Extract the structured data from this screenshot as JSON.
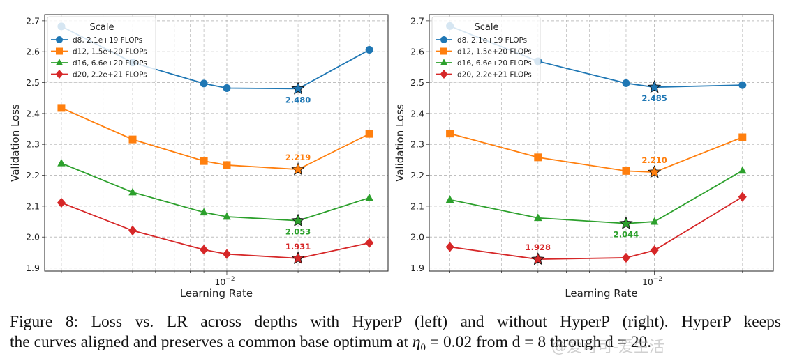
{
  "chart_data": [
    {
      "type": "line",
      "panel": "left",
      "title": "",
      "xlabel": "Learning Rate",
      "ylabel": "Validation Loss",
      "xscale": "log",
      "xlim": [
        0.0017,
        0.048
      ],
      "ylim": [
        1.89,
        2.72
      ],
      "yticks": [
        1.9,
        2.0,
        2.1,
        2.2,
        2.3,
        2.4,
        2.5,
        2.6,
        2.7
      ],
      "ytick_labels": [
        "1.9",
        "2.0",
        "2.1",
        "2.2",
        "2.3",
        "2.4",
        "2.5",
        "2.6",
        "2.7"
      ],
      "xticks_major": [
        0.01
      ],
      "xtick_labels": [
        "10^-2"
      ],
      "grid": true,
      "legend": {
        "title": "Scale",
        "placement": "top-left"
      },
      "x": [
        0.002,
        0.004,
        0.008,
        0.01,
        0.02,
        0.04
      ],
      "series": [
        {
          "name": "d8, 2.1e+19 FLOPs",
          "color": "#1f77b4",
          "marker": "circle",
          "values": [
            2.682,
            2.565,
            2.497,
            2.482,
            2.48,
            2.606
          ],
          "best": {
            "x": 0.02,
            "y": 2.48,
            "label": "2.480",
            "label_pos": "below"
          }
        },
        {
          "name": "d12, 1.5e+20 FLOPs",
          "color": "#ff7f0e",
          "marker": "square",
          "values": [
            2.418,
            2.316,
            2.246,
            2.233,
            2.219,
            2.334
          ],
          "best": {
            "x": 0.02,
            "y": 2.219,
            "label": "2.219",
            "label_pos": "above"
          }
        },
        {
          "name": "d16, 6.6e+20 FLOPs",
          "color": "#2ca02c",
          "marker": "triangle",
          "values": [
            2.239,
            2.145,
            2.08,
            2.066,
            2.053,
            2.127
          ],
          "best": {
            "x": 0.02,
            "y": 2.053,
            "label": "2.053",
            "label_pos": "below"
          }
        },
        {
          "name": "d20, 2.2e+21 FLOPs",
          "color": "#d62728",
          "marker": "diamond",
          "values": [
            2.111,
            2.021,
            1.959,
            1.945,
            1.931,
            1.981
          ],
          "best": {
            "x": 0.02,
            "y": 1.931,
            "label": "1.931",
            "label_pos": "above"
          }
        }
      ]
    },
    {
      "type": "line",
      "panel": "right",
      "title": "",
      "xlabel": "Learning Rate",
      "ylabel": "Validation Loss",
      "xscale": "log",
      "xlim": [
        0.0017,
        0.0255
      ],
      "ylim": [
        1.89,
        2.72
      ],
      "yticks": [
        1.9,
        2.0,
        2.1,
        2.2,
        2.3,
        2.4,
        2.5,
        2.6,
        2.7
      ],
      "ytick_labels": [
        "1.9",
        "2.0",
        "2.1",
        "2.2",
        "2.3",
        "2.4",
        "2.5",
        "2.6",
        "2.7"
      ],
      "xticks_major": [
        0.01
      ],
      "xtick_labels": [
        "10^-2"
      ],
      "grid": true,
      "legend": {
        "title": "Scale",
        "placement": "top-left"
      },
      "x": [
        0.002,
        0.004,
        0.008,
        0.01,
        0.02
      ],
      "series": [
        {
          "name": "d8, 2.1e+19 FLOPs",
          "color": "#1f77b4",
          "marker": "circle",
          "values": [
            2.683,
            2.569,
            2.498,
            2.485,
            2.492
          ],
          "best": {
            "x": 0.01,
            "y": 2.485,
            "label": "2.485",
            "label_pos": "below"
          }
        },
        {
          "name": "d12, 1.5e+20 FLOPs",
          "color": "#ff7f0e",
          "marker": "square",
          "values": [
            2.335,
            2.258,
            2.214,
            2.21,
            2.323
          ],
          "best": {
            "x": 0.01,
            "y": 2.21,
            "label": "2.210",
            "label_pos": "above"
          }
        },
        {
          "name": "d16, 6.6e+20 FLOPs",
          "color": "#2ca02c",
          "marker": "triangle",
          "values": [
            2.121,
            2.062,
            2.044,
            2.05,
            2.215
          ],
          "best": {
            "x": 0.008,
            "y": 2.044,
            "label": "2.044",
            "label_pos": "below"
          }
        },
        {
          "name": "d20, 2.2e+21 FLOPs",
          "color": "#d62728",
          "marker": "diamond",
          "values": [
            1.968,
            1.928,
            1.933,
            1.957,
            2.13
          ],
          "best": {
            "x": 0.004,
            "y": 1.928,
            "label": "1.928",
            "label_pos": "above"
          }
        }
      ]
    }
  ],
  "caption": {
    "line1": "Figure 8: Loss vs. LR across depths with HyperP (left) and without HyperP (right). HyperP keeps",
    "line2_pre": "the curves aligned and preserves a common base optimum at ",
    "eta": "η",
    "eta_sub": "0",
    "line2_post": " = 0.02 from d = 8 through d = 20."
  },
  "watermark": "@爱可可-爱生活"
}
